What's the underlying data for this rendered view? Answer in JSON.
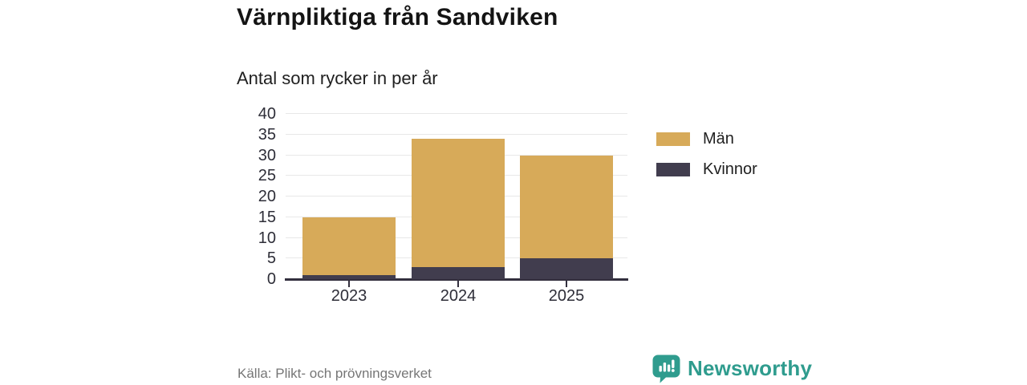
{
  "header": {
    "title": "Värnpliktiga från Sandviken",
    "subtitle": "Antal som rycker in per år"
  },
  "chart_data": {
    "type": "bar",
    "stacked": true,
    "title": "Värnpliktiga från Sandviken",
    "subtitle": "Antal som rycker in per år",
    "categories": [
      "2023",
      "2024",
      "2025"
    ],
    "series": [
      {
        "name": "Män",
        "color": "#d7aa59",
        "values": [
          14,
          31,
          25
        ]
      },
      {
        "name": "Kvinnor",
        "color": "#413d4e",
        "values": [
          1,
          3,
          5
        ]
      }
    ],
    "totals": [
      15,
      34,
      30
    ],
    "ylim": [
      0,
      40
    ],
    "yticks": [
      0,
      5,
      10,
      15,
      20,
      25,
      30,
      35,
      40
    ],
    "grid": "horizontal",
    "legend_position": "right"
  },
  "footer": {
    "source": "Källa: Plikt- och prövningsverket",
    "brand": "Newsworthy"
  },
  "colors": {
    "men": "#d7aa59",
    "women": "#413d4e",
    "brand_teal": "#2f9c8e",
    "axis": "#332f3e",
    "gridline": "#e8e8e8"
  }
}
